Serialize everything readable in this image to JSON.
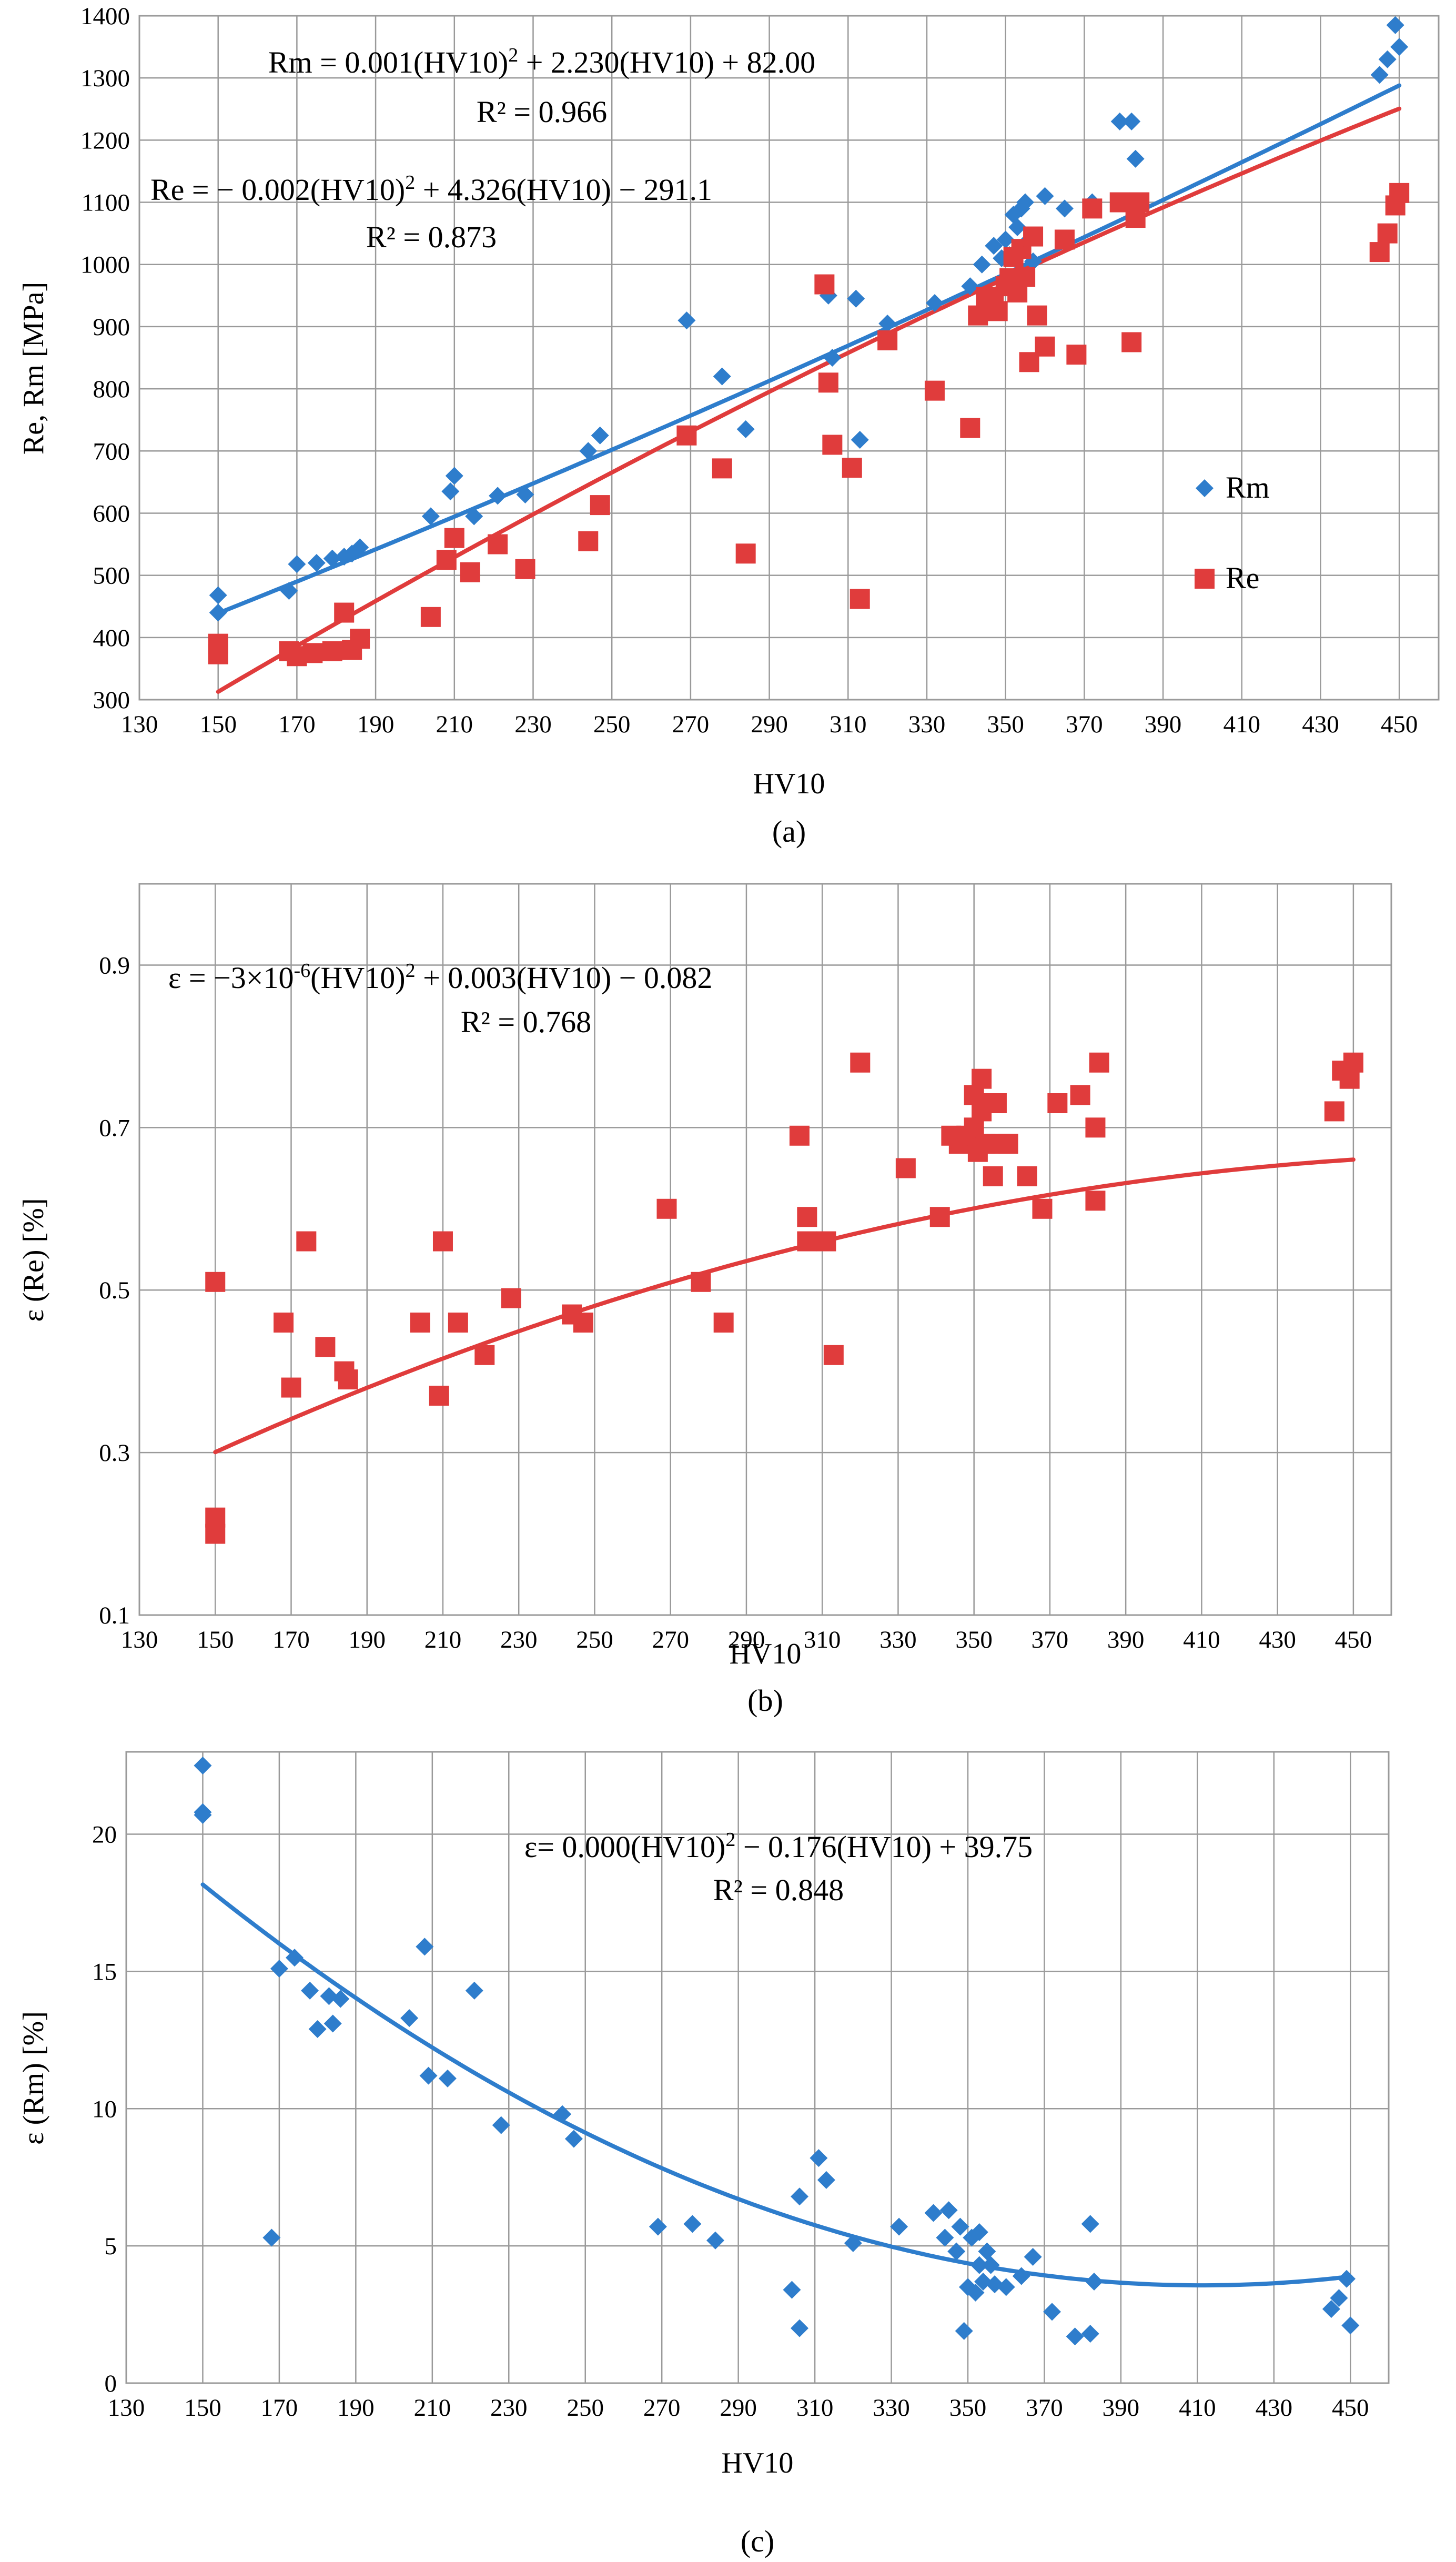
{
  "colors": {
    "rm": "#2e7dcc",
    "re": "#e03c3c",
    "grid": "#9a9a9a"
  },
  "chart_data": [
    {
      "id": "a",
      "type": "scatter",
      "caption": "(a)",
      "xlabel": "HV10",
      "ylabel": "Re, Rm [MPa]",
      "xlim": [
        130,
        460
      ],
      "ylim": [
        300,
        1400
      ],
      "xticks": [
        130,
        150,
        170,
        190,
        210,
        230,
        250,
        270,
        290,
        310,
        330,
        350,
        370,
        390,
        410,
        430,
        450
      ],
      "yticks": [
        300,
        400,
        500,
        600,
        700,
        800,
        900,
        1000,
        1100,
        1200,
        1300,
        1400
      ],
      "legend": {
        "placement": "right",
        "entries": [
          {
            "label": "Rm",
            "series": 0
          },
          {
            "label": "Re",
            "series": 1
          }
        ]
      },
      "equations": [
        {
          "pre": "Rm = 0.001(HV10)",
          "sup": "2",
          "post": " + 2.230(HV10)  + 82.00",
          "r2": "R² = 0.966"
        },
        {
          "pre": "Re = − 0.002(HV10)",
          "sup": "2",
          "post": " + 4.326(HV10)  − 291.1",
          "r2": "R² = 0.873"
        }
      ],
      "series": [
        {
          "name": "Rm",
          "marker": "diamond",
          "color": "#2e7dcc",
          "trend": {
            "type": "poly2",
            "a": 0.001,
            "b": 2.23,
            "c": 82.0,
            "x_range": [
              150,
              450
            ]
          },
          "points": [
            [
              150,
              468
            ],
            [
              150,
              440
            ],
            [
              168,
              475
            ],
            [
              170,
              518
            ],
            [
              175,
              520
            ],
            [
              179,
              527
            ],
            [
              182,
              530
            ],
            [
              184,
              535
            ],
            [
              186,
              545
            ],
            [
              204,
              595
            ],
            [
              209,
              635
            ],
            [
              210,
              660
            ],
            [
              215,
              595
            ],
            [
              221,
              628
            ],
            [
              228,
              630
            ],
            [
              244,
              700
            ],
            [
              247,
              725
            ],
            [
              269,
              910
            ],
            [
              278,
              820
            ],
            [
              284,
              735
            ],
            [
              305,
              950
            ],
            [
              306,
              850
            ],
            [
              312,
              945
            ],
            [
              313,
              718
            ],
            [
              320,
              905
            ],
            [
              332,
              938
            ],
            [
              341,
              965
            ],
            [
              344,
              1000
            ],
            [
              347,
              1030
            ],
            [
              349,
              1010
            ],
            [
              350,
              1040
            ],
            [
              351,
              1015
            ],
            [
              352,
              1080
            ],
            [
              353,
              1060
            ],
            [
              354,
              1090
            ],
            [
              355,
              1100
            ],
            [
              356,
              1040
            ],
            [
              357,
              1005
            ],
            [
              360,
              1110
            ],
            [
              365,
              1090
            ],
            [
              372,
              1100
            ],
            [
              379,
              1230
            ],
            [
              382,
              1230
            ],
            [
              383,
              1170
            ],
            [
              445,
              1305
            ],
            [
              447,
              1330
            ],
            [
              449,
              1385
            ],
            [
              450,
              1350
            ]
          ]
        },
        {
          "name": "Re",
          "marker": "square",
          "color": "#e03c3c",
          "trend": {
            "type": "poly2",
            "a": -0.002,
            "b": 4.326,
            "c": -291.1,
            "x_range": [
              150,
              450
            ]
          },
          "points": [
            [
              150,
              390
            ],
            [
              150,
              373
            ],
            [
              168,
              378
            ],
            [
              170,
              370
            ],
            [
              174,
              375
            ],
            [
              179,
              378
            ],
            [
              182,
              440
            ],
            [
              184,
              380
            ],
            [
              186,
              398
            ],
            [
              204,
              433
            ],
            [
              208,
              525
            ],
            [
              210,
              560
            ],
            [
              214,
              505
            ],
            [
              221,
              550
            ],
            [
              228,
              510
            ],
            [
              244,
              555
            ],
            [
              247,
              613
            ],
            [
              269,
              725
            ],
            [
              278,
              672
            ],
            [
              284,
              535
            ],
            [
              304,
              968
            ],
            [
              305,
              810
            ],
            [
              306,
              710
            ],
            [
              311,
              673
            ],
            [
              313,
              462
            ],
            [
              320,
              878
            ],
            [
              332,
              797
            ],
            [
              341,
              737
            ],
            [
              343,
              918
            ],
            [
              345,
              948
            ],
            [
              347,
              938
            ],
            [
              348,
              925
            ],
            [
              350,
              965
            ],
            [
              351,
              978
            ],
            [
              352,
              1012
            ],
            [
              353,
              955
            ],
            [
              354,
              1025
            ],
            [
              355,
              980
            ],
            [
              356,
              843
            ],
            [
              357,
              1045
            ],
            [
              358,
              918
            ],
            [
              360,
              868
            ],
            [
              365,
              1040
            ],
            [
              368,
              855
            ],
            [
              372,
              1090
            ],
            [
              379,
              1100
            ],
            [
              382,
              875
            ],
            [
              383,
              1075
            ],
            [
              384,
              1100
            ],
            [
              445,
              1020
            ],
            [
              447,
              1050
            ],
            [
              449,
              1095
            ],
            [
              450,
              1115
            ]
          ]
        }
      ]
    },
    {
      "id": "b",
      "type": "scatter",
      "caption": "(b)",
      "xlabel": "HV10",
      "ylabel": "ε (Re) [%]",
      "xlim": [
        130,
        460
      ],
      "ylim": [
        0.1,
        1.0
      ],
      "xticks": [
        130,
        150,
        170,
        190,
        210,
        230,
        250,
        270,
        290,
        310,
        330,
        350,
        370,
        390,
        410,
        430,
        450
      ],
      "yticks": [
        0.1,
        0.3,
        0.5,
        0.7,
        0.9
      ],
      "equations": [
        {
          "pre": "ε = −3×10",
          "sup": "-6",
          "mid": "(HV10)",
          "sup2": "2",
          "post": " + 0.003(HV10)  − 0.082",
          "r2": "R² = 0.768"
        }
      ],
      "series": [
        {
          "name": "ε (Re)",
          "marker": "square",
          "color": "#e03c3c",
          "trend": {
            "type": "poly2",
            "a": -3e-06,
            "b": 0.003,
            "c": -0.082,
            "x_range": [
              150,
              450
            ]
          },
          "points": [
            [
              150,
              0.51
            ],
            [
              150,
              0.22
            ],
            [
              150,
              0.2
            ],
            [
              168,
              0.46
            ],
            [
              170,
              0.38
            ],
            [
              174,
              0.56
            ],
            [
              179,
              0.43
            ],
            [
              184,
              0.4
            ],
            [
              185,
              0.39
            ],
            [
              204,
              0.46
            ],
            [
              209,
              0.37
            ],
            [
              210,
              0.56
            ],
            [
              214,
              0.46
            ],
            [
              221,
              0.42
            ],
            [
              228,
              0.49
            ],
            [
              244,
              0.47
            ],
            [
              247,
              0.46
            ],
            [
              269,
              0.6
            ],
            [
              278,
              0.51
            ],
            [
              284,
              0.46
            ],
            [
              304,
              0.69
            ],
            [
              306,
              0.59
            ],
            [
              306,
              0.56
            ],
            [
              311,
              0.56
            ],
            [
              313,
              0.42
            ],
            [
              320,
              0.78
            ],
            [
              332,
              0.65
            ],
            [
              341,
              0.59
            ],
            [
              344,
              0.69
            ],
            [
              346,
              0.68
            ],
            [
              348,
              0.69
            ],
            [
              350,
              0.74
            ],
            [
              350,
              0.7
            ],
            [
              351,
              0.67
            ],
            [
              352,
              0.76
            ],
            [
              352,
              0.72
            ],
            [
              353,
              0.68
            ],
            [
              354,
              0.73
            ],
            [
              355,
              0.64
            ],
            [
              356,
              0.73
            ],
            [
              357,
              0.68
            ],
            [
              359,
              0.68
            ],
            [
              364,
              0.64
            ],
            [
              368,
              0.6
            ],
            [
              372,
              0.73
            ],
            [
              378,
              0.74
            ],
            [
              382,
              0.61
            ],
            [
              382,
              0.7
            ],
            [
              383,
              0.78
            ],
            [
              445,
              0.72
            ],
            [
              447,
              0.77
            ],
            [
              449,
              0.76
            ],
            [
              450,
              0.78
            ]
          ]
        }
      ]
    },
    {
      "id": "c",
      "type": "scatter",
      "caption": "(c)",
      "xlabel": "HV10",
      "ylabel": "ε (Rm) [%]",
      "xlim": [
        130,
        460
      ],
      "ylim": [
        0,
        23
      ],
      "xticks": [
        130,
        150,
        170,
        190,
        210,
        230,
        250,
        270,
        290,
        310,
        330,
        350,
        370,
        390,
        410,
        430,
        450
      ],
      "yticks": [
        0,
        5,
        10,
        15,
        20
      ],
      "equations": [
        {
          "pre": "ε= 0.000(HV10)",
          "sup": "2",
          "post": " − 0.176(HV10)  + 39.75",
          "r2": "R² = 0.848"
        }
      ],
      "series": [
        {
          "name": "ε (Rm)",
          "marker": "diamond",
          "color": "#2e7dcc",
          "trend": {
            "type": "poly2",
            "a": 0.000214,
            "b": -0.176,
            "c": 39.75,
            "x_range": [
              150,
              450
            ]
          },
          "points": [
            [
              150,
              22.5
            ],
            [
              150,
              20.8
            ],
            [
              150,
              20.7
            ],
            [
              168,
              5.3
            ],
            [
              170,
              15.1
            ],
            [
              174,
              15.5
            ],
            [
              178,
              14.3
            ],
            [
              180,
              12.9
            ],
            [
              183,
              14.1
            ],
            [
              184,
              13.1
            ],
            [
              186,
              14.0
            ],
            [
              204,
              13.3
            ],
            [
              208,
              15.9
            ],
            [
              209,
              11.2
            ],
            [
              214,
              11.1
            ],
            [
              221,
              14.3
            ],
            [
              228,
              9.4
            ],
            [
              244,
              9.8
            ],
            [
              247,
              8.9
            ],
            [
              269,
              5.7
            ],
            [
              278,
              5.8
            ],
            [
              284,
              5.2
            ],
            [
              304,
              3.4
            ],
            [
              306,
              2.0
            ],
            [
              306,
              6.8
            ],
            [
              311,
              8.2
            ],
            [
              313,
              7.4
            ],
            [
              320,
              5.1
            ],
            [
              332,
              5.7
            ],
            [
              341,
              6.2
            ],
            [
              344,
              5.3
            ],
            [
              345,
              6.3
            ],
            [
              347,
              4.8
            ],
            [
              348,
              5.7
            ],
            [
              349,
              1.9
            ],
            [
              350,
              3.5
            ],
            [
              351,
              5.3
            ],
            [
              352,
              3.3
            ],
            [
              353,
              4.3
            ],
            [
              353,
              5.5
            ],
            [
              354,
              3.7
            ],
            [
              355,
              4.8
            ],
            [
              356,
              4.3
            ],
            [
              357,
              3.6
            ],
            [
              360,
              3.5
            ],
            [
              364,
              3.9
            ],
            [
              367,
              4.6
            ],
            [
              372,
              2.6
            ],
            [
              378,
              1.7
            ],
            [
              382,
              5.8
            ],
            [
              382,
              1.8
            ],
            [
              383,
              3.7
            ],
            [
              445,
              2.7
            ],
            [
              447,
              3.1
            ],
            [
              449,
              3.8
            ],
            [
              450,
              2.1
            ]
          ]
        }
      ]
    }
  ]
}
